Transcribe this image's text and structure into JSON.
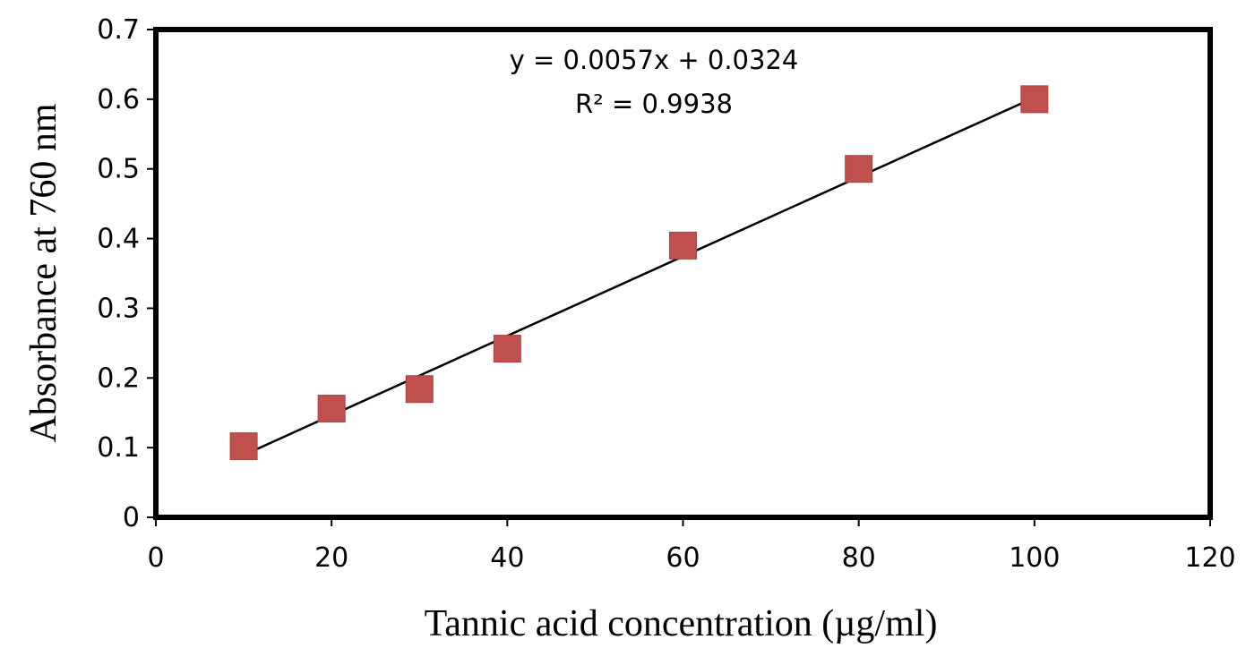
{
  "chart_data": {
    "type": "scatter",
    "title": "",
    "xlabel": "Tannic acid concentration (µg/ml)",
    "ylabel": "Absorbance at 760 nm",
    "xlim": [
      0,
      120
    ],
    "ylim": [
      0,
      0.7
    ],
    "x_ticks": [
      "0",
      "20",
      "40",
      "60",
      "80",
      "100",
      "120"
    ],
    "y_ticks": [
      "0",
      "0.1",
      "0.2",
      "0.3",
      "0.4",
      "0.5",
      "0.6",
      "0.7"
    ],
    "grid": false,
    "legend": "none",
    "series": [
      {
        "x": [
          10,
          20,
          30,
          40,
          60,
          80,
          100
        ],
        "y": [
          0.102,
          0.156,
          0.184,
          0.242,
          0.39,
          0.5,
          0.6
        ],
        "marker": "square",
        "color": "#c0504d"
      }
    ],
    "trendline": {
      "type": "linear",
      "slope": 0.0057,
      "intercept": 0.0324,
      "x_range": [
        10,
        100
      ],
      "color": "#000000",
      "equation": "y = 0.0057x + 0.0324",
      "r_squared": "R² = 0.9938"
    }
  }
}
